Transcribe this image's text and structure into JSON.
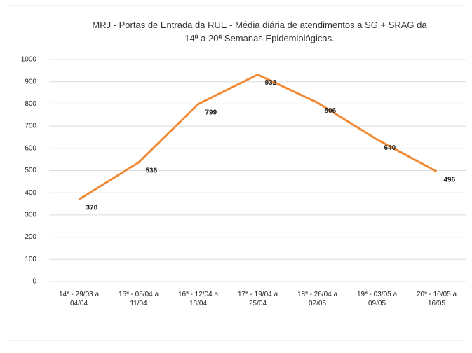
{
  "chart_data": {
    "type": "line",
    "title": "MRJ - Portas de Entrada da RUE - Média diária de atendimentos a SG + SRAG da 14ª a 20ª Semanas Epidemiológicas.",
    "categories": [
      "14ª - 29/03 a 04/04",
      "15ª - 05/04 a 11/04",
      "16ª - 12/04 a 18/04",
      "17ª - 19/04 a 25/04",
      "18ª - 26/04 a 02/05",
      "19ª - 03/05 a 09/05",
      "20ª - 10/05 a 16/05"
    ],
    "values": [
      370,
      536,
      799,
      932,
      806,
      640,
      496
    ],
    "color": "#f08a35",
    "ylim": [
      0,
      1000
    ],
    "yticks": [
      0,
      100,
      200,
      300,
      400,
      500,
      600,
      700,
      800,
      900,
      1000
    ],
    "grid": true
  }
}
